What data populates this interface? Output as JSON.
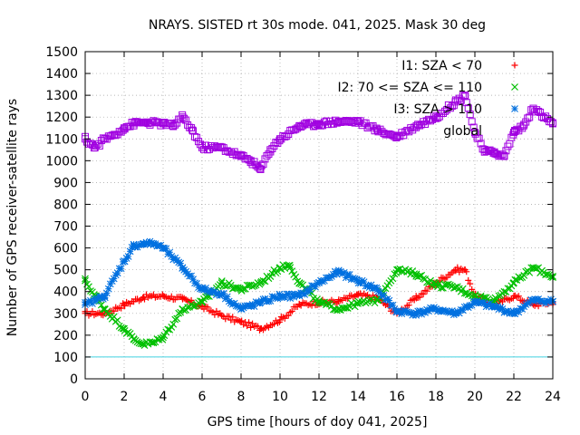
{
  "chart_data": {
    "type": "scatter",
    "title": "NRAYS. SISTED rt 30s mode. 041, 2025. Mask 30 deg",
    "xlabel": "GPS time [hours of doy 041, 2025]",
    "ylabel": "Number of GPS receiver-satellite rays",
    "xlim": [
      0,
      24
    ],
    "ylim": [
      0,
      1500
    ],
    "xticks": [
      "0",
      "2",
      "4",
      "6",
      "8",
      "10",
      "12",
      "14",
      "16",
      "18",
      "20",
      "22",
      "24"
    ],
    "yticks": [
      "0",
      "100",
      "200",
      "300",
      "400",
      "500",
      "600",
      "700",
      "800",
      "900",
      "1000",
      "1100",
      "1200",
      "1300",
      "1400",
      "1500"
    ],
    "grid": true,
    "legend_position": "top-right",
    "reference_line": {
      "y": 100,
      "color": "#40d0e0"
    },
    "series": [
      {
        "name": "I1: SZA < 70",
        "marker": "plus",
        "color": "#ff0000",
        "x": [
          0,
          1,
          2,
          3,
          4,
          5,
          6,
          7,
          8,
          9,
          10,
          11,
          12,
          13,
          14,
          15,
          16,
          17,
          18,
          19,
          19.5,
          20,
          21,
          22,
          23,
          24
        ],
        "y": [
          300,
          300,
          340,
          375,
          380,
          365,
          330,
          290,
          260,
          230,
          270,
          340,
          350,
          355,
          385,
          370,
          300,
          370,
          440,
          500,
          500,
          380,
          340,
          380,
          340,
          350
        ]
      },
      {
        "name": "I2: 70 <= SZA <= 110",
        "marker": "cross",
        "color": "#00c000",
        "x": [
          0,
          0.5,
          1,
          2,
          2.5,
          3,
          3.5,
          4,
          5,
          6,
          7,
          8,
          9,
          10,
          10.5,
          11,
          12,
          13,
          14,
          15,
          16,
          17,
          18,
          19,
          20,
          21,
          22,
          23,
          24
        ],
        "y": [
          450,
          380,
          320,
          230,
          180,
          160,
          165,
          190,
          320,
          350,
          440,
          410,
          440,
          510,
          520,
          440,
          350,
          320,
          345,
          360,
          500,
          480,
          430,
          420,
          380,
          360,
          440,
          510,
          470
        ]
      },
      {
        "name": "I3: SZA > 110",
        "marker": "star",
        "color": "#0070e0",
        "x": [
          0,
          1,
          2,
          2.5,
          3,
          3.5,
          4,
          5,
          6,
          7,
          8,
          9,
          10,
          11,
          12,
          13,
          14,
          15,
          16,
          17,
          18,
          19,
          20,
          21,
          22,
          23,
          24
        ],
        "y": [
          340,
          380,
          540,
          610,
          620,
          620,
          600,
          510,
          410,
          390,
          320,
          350,
          380,
          380,
          440,
          490,
          450,
          410,
          310,
          300,
          320,
          300,
          350,
          330,
          300,
          360,
          355
        ]
      },
      {
        "name": "global",
        "marker": "square",
        "color": "#a000e0",
        "x": [
          0,
          0.5,
          1,
          1.5,
          2,
          2.5,
          3,
          4,
          4.5,
          5,
          5.5,
          6,
          7,
          7.5,
          8,
          8.5,
          9,
          9.5,
          10,
          11,
          12,
          13,
          14,
          15,
          16,
          17,
          18,
          19,
          19.5,
          20,
          20.5,
          21,
          21.5,
          22,
          22.5,
          23,
          24
        ],
        "y": [
          1100,
          1060,
          1100,
          1120,
          1150,
          1170,
          1175,
          1170,
          1160,
          1200,
          1140,
          1060,
          1060,
          1040,
          1020,
          1000,
          960,
          1050,
          1100,
          1160,
          1170,
          1180,
          1180,
          1140,
          1110,
          1160,
          1200,
          1270,
          1300,
          1130,
          1040,
          1040,
          1020,
          1130,
          1160,
          1240,
          1170
        ]
      }
    ]
  }
}
